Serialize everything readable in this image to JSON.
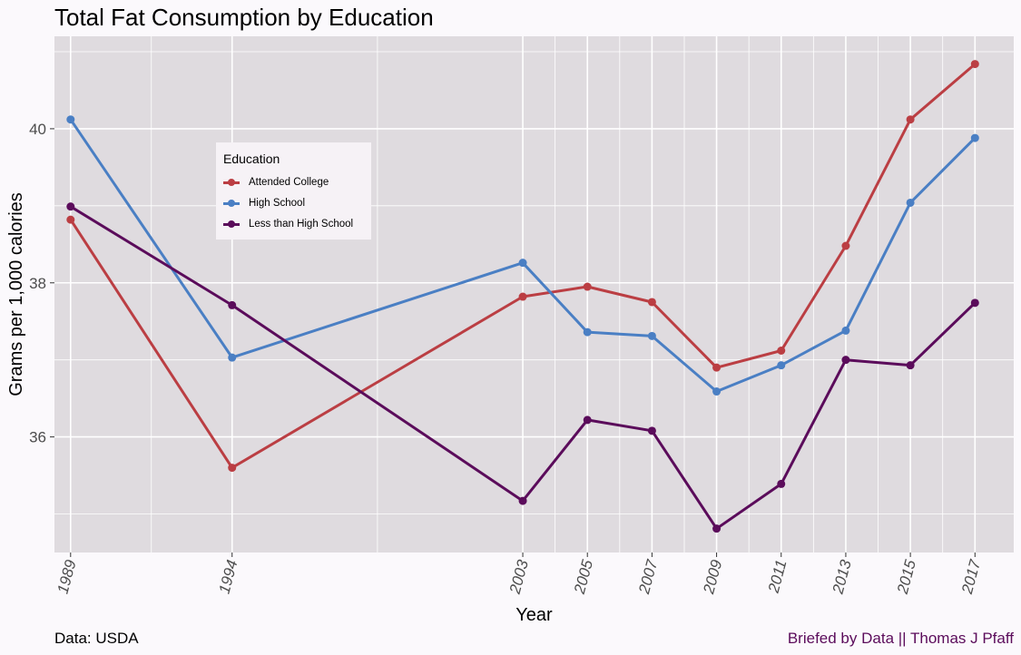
{
  "chart_data": {
    "type": "line",
    "title": "Total Fat Consumption by Education",
    "xlabel": "Year",
    "ylabel": "Grams per 1,000 calories",
    "x": [
      1989,
      1994,
      2003,
      2005,
      2007,
      2009,
      2011,
      2013,
      2015,
      2017
    ],
    "xticks": [
      "1989",
      "1994",
      "2003",
      "2005",
      "2007",
      "2009",
      "2011",
      "2013",
      "2015",
      "2017"
    ],
    "xlim": [
      1988.5,
      2018.2
    ],
    "ylim": [
      34.5,
      41.2
    ],
    "yticks": [
      36,
      38,
      40
    ],
    "grid": true,
    "legend": {
      "title": "Education",
      "placement": "top-left (inside plot)"
    },
    "series": [
      {
        "name": "Attended College",
        "color": "#bb3e43",
        "values": [
          38.82,
          35.6,
          37.82,
          37.95,
          37.75,
          36.9,
          37.12,
          38.48,
          40.12,
          40.84
        ]
      },
      {
        "name": "High School",
        "color": "#4a7fc4",
        "values": [
          40.12,
          37.03,
          38.26,
          37.36,
          37.31,
          36.59,
          36.93,
          37.38,
          39.04,
          39.88
        ]
      },
      {
        "name": "Less than High School",
        "color": "#5b0c5b",
        "values": [
          38.99,
          37.71,
          35.17,
          36.22,
          36.08,
          34.81,
          35.39,
          37.0,
          36.93,
          37.74
        ]
      }
    ]
  },
  "captions": {
    "left": "Data: USDA",
    "right": "Briefed by Data || Thomas J Pfaff",
    "right_color": "#5b0c5b"
  },
  "colors": {
    "panel_background": "#dfdbdf",
    "grid": "#ffffff",
    "text": "#000000",
    "tick_text": "#4d4d4d"
  }
}
